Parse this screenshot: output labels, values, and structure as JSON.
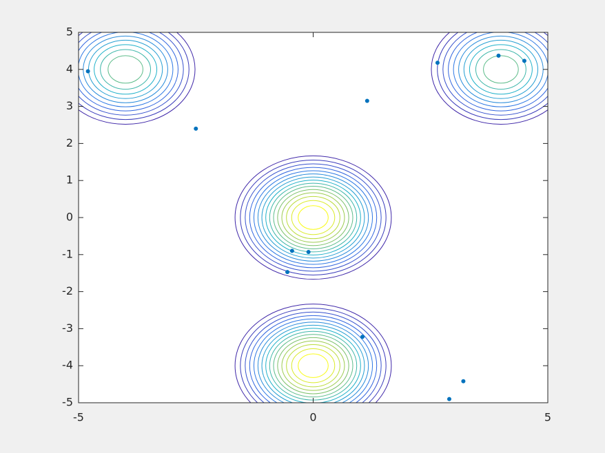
{
  "chart_data": {
    "type": "contour",
    "xlim": [
      -5,
      5
    ],
    "ylim": [
      -5,
      5
    ],
    "xticks": [
      -5,
      0,
      5
    ],
    "yticks": [
      -5,
      -4,
      -3,
      -2,
      -1,
      0,
      1,
      2,
      3,
      4,
      5
    ],
    "levels": [
      0.25,
      0.3,
      0.35,
      0.4,
      0.45,
      0.5,
      0.55,
      0.6,
      0.65,
      0.7,
      0.75,
      0.8,
      0.85,
      0.9,
      0.95
    ],
    "peaks": [
      {
        "x": -4,
        "y": 4,
        "amplitude": 0.75,
        "sigma": 1
      },
      {
        "x": 4,
        "y": 4,
        "amplitude": 0.75,
        "sigma": 1
      },
      {
        "x": 0,
        "y": 0,
        "amplitude": 1,
        "sigma": 1
      },
      {
        "x": 0,
        "y": -4,
        "amplitude": 1,
        "sigma": 1
      }
    ],
    "colormap": [
      "#3e26a8",
      "#2f6fe8",
      "#1fb1c9",
      "#8cc45a",
      "#f9fb15"
    ],
    "scatter": {
      "color": "#0072bd",
      "x": [
        -4.8,
        -2.5,
        1.15,
        2.65,
        3.95,
        4.5,
        -0.45,
        -0.1,
        -0.55,
        1.05,
        3.2,
        2.9
      ],
      "y": [
        3.95,
        2.4,
        3.15,
        4.18,
        4.37,
        4.23,
        -0.9,
        -0.93,
        -1.47,
        -3.22,
        -4.42,
        -4.9
      ]
    }
  }
}
